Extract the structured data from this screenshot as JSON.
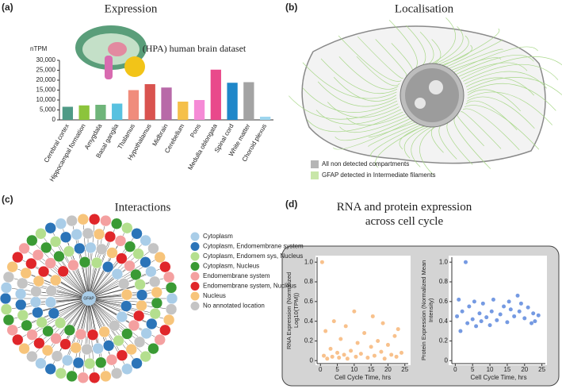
{
  "chart_data": [
    {
      "type": "bar",
      "panel_label": "(a)",
      "title": "Expression",
      "subtitle": "(HPA) human brain dataset",
      "ylabel": "nTPM",
      "categories": [
        "Cerebral cortex",
        "Hippocampal formation",
        "Amygdala",
        "Basal ganglia",
        "Thalamus",
        "Hypothalamus",
        "Midbrain",
        "Cerebellum",
        "Pons",
        "Medulla oblongata",
        "Spinal cord",
        "White matter",
        "Choroid plexus"
      ],
      "values": [
        6600,
        7300,
        7600,
        8200,
        15000,
        18000,
        16300,
        9200,
        10000,
        25300,
        18700,
        19000,
        1600
      ],
      "colors": [
        "#4f9a86",
        "#8cc43c",
        "#6fb57a",
        "#58c1e0",
        "#f08c7c",
        "#d9534f",
        "#b86aa8",
        "#f5c04a",
        "#f58ad6",
        "#e9498b",
        "#1f87c9",
        "#a3a3a3",
        "#9ed6ef"
      ],
      "ylim": [
        0,
        30000
      ],
      "yticks": [
        0,
        {
          "value": 5000,
          "label": "5,000"
        },
        {
          "value": 10000,
          "label": "10,000"
        },
        {
          "value": 15000,
          "label": "15,000"
        },
        {
          "value": 20000,
          "label": "20,000"
        },
        {
          "value": 25000,
          "label": "25,000"
        },
        {
          "value": 30000,
          "label": "30,000"
        }
      ]
    },
    {
      "type": "illustration",
      "panel_label": "(b)",
      "title": "Localisation",
      "legend": [
        {
          "name": "All non detected compartments",
          "color": "#b5b5b5"
        },
        {
          "name": "GFAP detected in Intermediate filaments",
          "color": "#c8e6a8"
        }
      ]
    },
    {
      "type": "network",
      "panel_label": "(c)",
      "title": "Interactions",
      "center": "GFAP",
      "legend": [
        {
          "name": "Cytoplasm",
          "color": "#a9cde8"
        },
        {
          "name": "Cytoplasm, Endomembrane system",
          "color": "#2b74b8"
        },
        {
          "name": "Cytoplasm, Endomem sys, Nucleus",
          "color": "#b4df8e"
        },
        {
          "name": "Cytoplasm, Nucleus",
          "color": "#3a9a34"
        },
        {
          "name": "Endomembrane system",
          "color": "#f4a0a0"
        },
        {
          "name": "Endomembrane system, Nucleus",
          "color": "#e0262a"
        },
        {
          "name": "Nucleus",
          "color": "#f7c47a"
        },
        {
          "name": "No annotated location",
          "color": "#c4c4c4"
        }
      ]
    },
    {
      "type": "scatter",
      "panel_label": "(d)",
      "title": "RNA and protein expression across cell cycle",
      "plots": [
        {
          "ylabel": "RNA Expression (Normalized Log10(TPM))",
          "xlabel": "Cell Cycle Time, hrs",
          "color": "#f5a65b",
          "xlim": [
            -1,
            26
          ],
          "ylim": [
            -0.03,
            1.05
          ],
          "xticks": [
            0,
            5,
            10,
            15,
            20,
            25
          ],
          "yticks": [
            0,
            0.2,
            0.4,
            0.6,
            0.8,
            {
              "value": 1,
              "label": "1.0"
            }
          ],
          "x": [
            0.5,
            1,
            1.5,
            2,
            3,
            3.5,
            4,
            5,
            5.5,
            6,
            7,
            7.5,
            8,
            9,
            10,
            10.5,
            11,
            12,
            13,
            14,
            15,
            15.5,
            16,
            17,
            18,
            18.5,
            19,
            20,
            21,
            22,
            22.5,
            23,
            24
          ],
          "y": [
            1.0,
            0.05,
            0.3,
            0.02,
            0.12,
            0.04,
            0.4,
            0.08,
            0.03,
            0.22,
            0.06,
            0.35,
            0.02,
            0.1,
            0.5,
            0.04,
            0.18,
            0.07,
            0.28,
            0.03,
            0.14,
            0.45,
            0.05,
            0.2,
            0.09,
            0.38,
            0.02,
            0.16,
            0.06,
            0.25,
            0.04,
            0.32,
            0.08
          ]
        },
        {
          "ylabel": "Protein Expression (Normalized Mean Intensity)",
          "xlabel": "Cell Cycle Time, hrs",
          "color": "#3b6fd6",
          "xlim": [
            -1,
            26
          ],
          "ylim": [
            -0.03,
            1.05
          ],
          "xticks": [
            0,
            5,
            10,
            15,
            20,
            25
          ],
          "yticks": [
            0,
            0.2,
            0.4,
            0.6,
            0.8,
            {
              "value": 1,
              "label": "1.0"
            }
          ],
          "x": [
            0.5,
            1,
            1.5,
            2,
            3,
            3.5,
            4,
            5,
            5.5,
            6,
            7,
            7.5,
            8,
            9,
            10,
            10.5,
            11,
            12,
            13,
            14,
            15,
            15.5,
            16,
            17,
            18,
            18.5,
            19,
            20,
            21,
            22,
            22.5,
            23,
            24
          ],
          "y": [
            0.45,
            0.62,
            0.3,
            0.5,
            1.0,
            0.38,
            0.55,
            0.42,
            0.6,
            0.35,
            0.48,
            0.4,
            0.58,
            0.44,
            0.36,
            0.5,
            0.62,
            0.41,
            0.47,
            0.55,
            0.39,
            0.6,
            0.52,
            0.45,
            0.66,
            0.5,
            0.58,
            0.43,
            0.54,
            0.38,
            0.48,
            0.4,
            0.46
          ]
        }
      ]
    }
  ]
}
